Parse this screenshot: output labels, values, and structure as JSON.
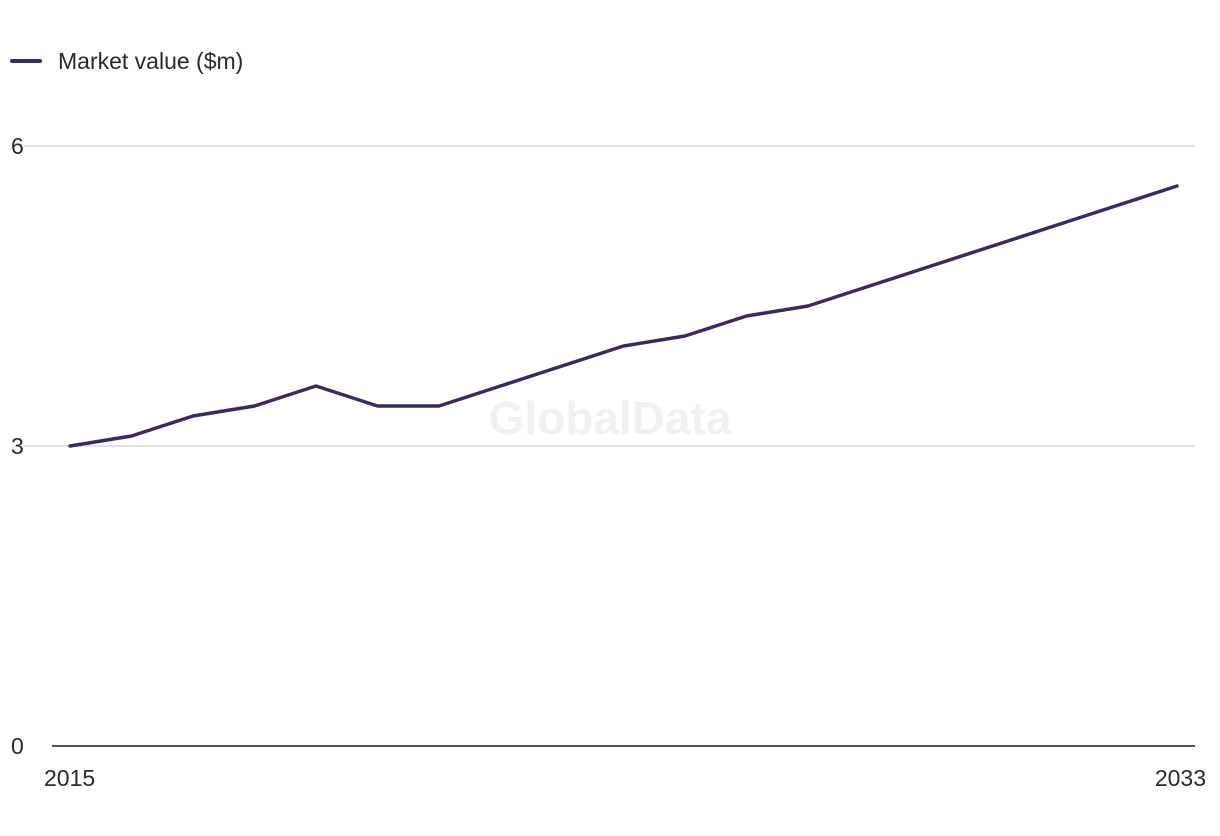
{
  "chart_data": {
    "type": "line",
    "x": [
      2015,
      2016,
      2017,
      2018,
      2019,
      2020,
      2021,
      2022,
      2023,
      2024,
      2025,
      2026,
      2027,
      2028,
      2029,
      2030,
      2031,
      2032,
      2033
    ],
    "series": [
      {
        "name": "Market value ($m)",
        "values": [
          3.0,
          3.1,
          3.3,
          3.4,
          3.6,
          3.4,
          3.4,
          3.6,
          3.8,
          4.0,
          4.1,
          4.3,
          4.4,
          4.6,
          4.8,
          5.0,
          5.2,
          5.4,
          5.6
        ],
        "color": "#3b2a5c"
      }
    ],
    "xticks": [
      "2015",
      "2033"
    ],
    "yticks": [
      0,
      3,
      6
    ],
    "ylim": [
      0,
      6
    ],
    "grid": true,
    "legend_position": "top-left",
    "watermark": "GlobalData",
    "colors": {
      "grid": "#d9d9dc",
      "axis": "#1a1a1a"
    }
  }
}
